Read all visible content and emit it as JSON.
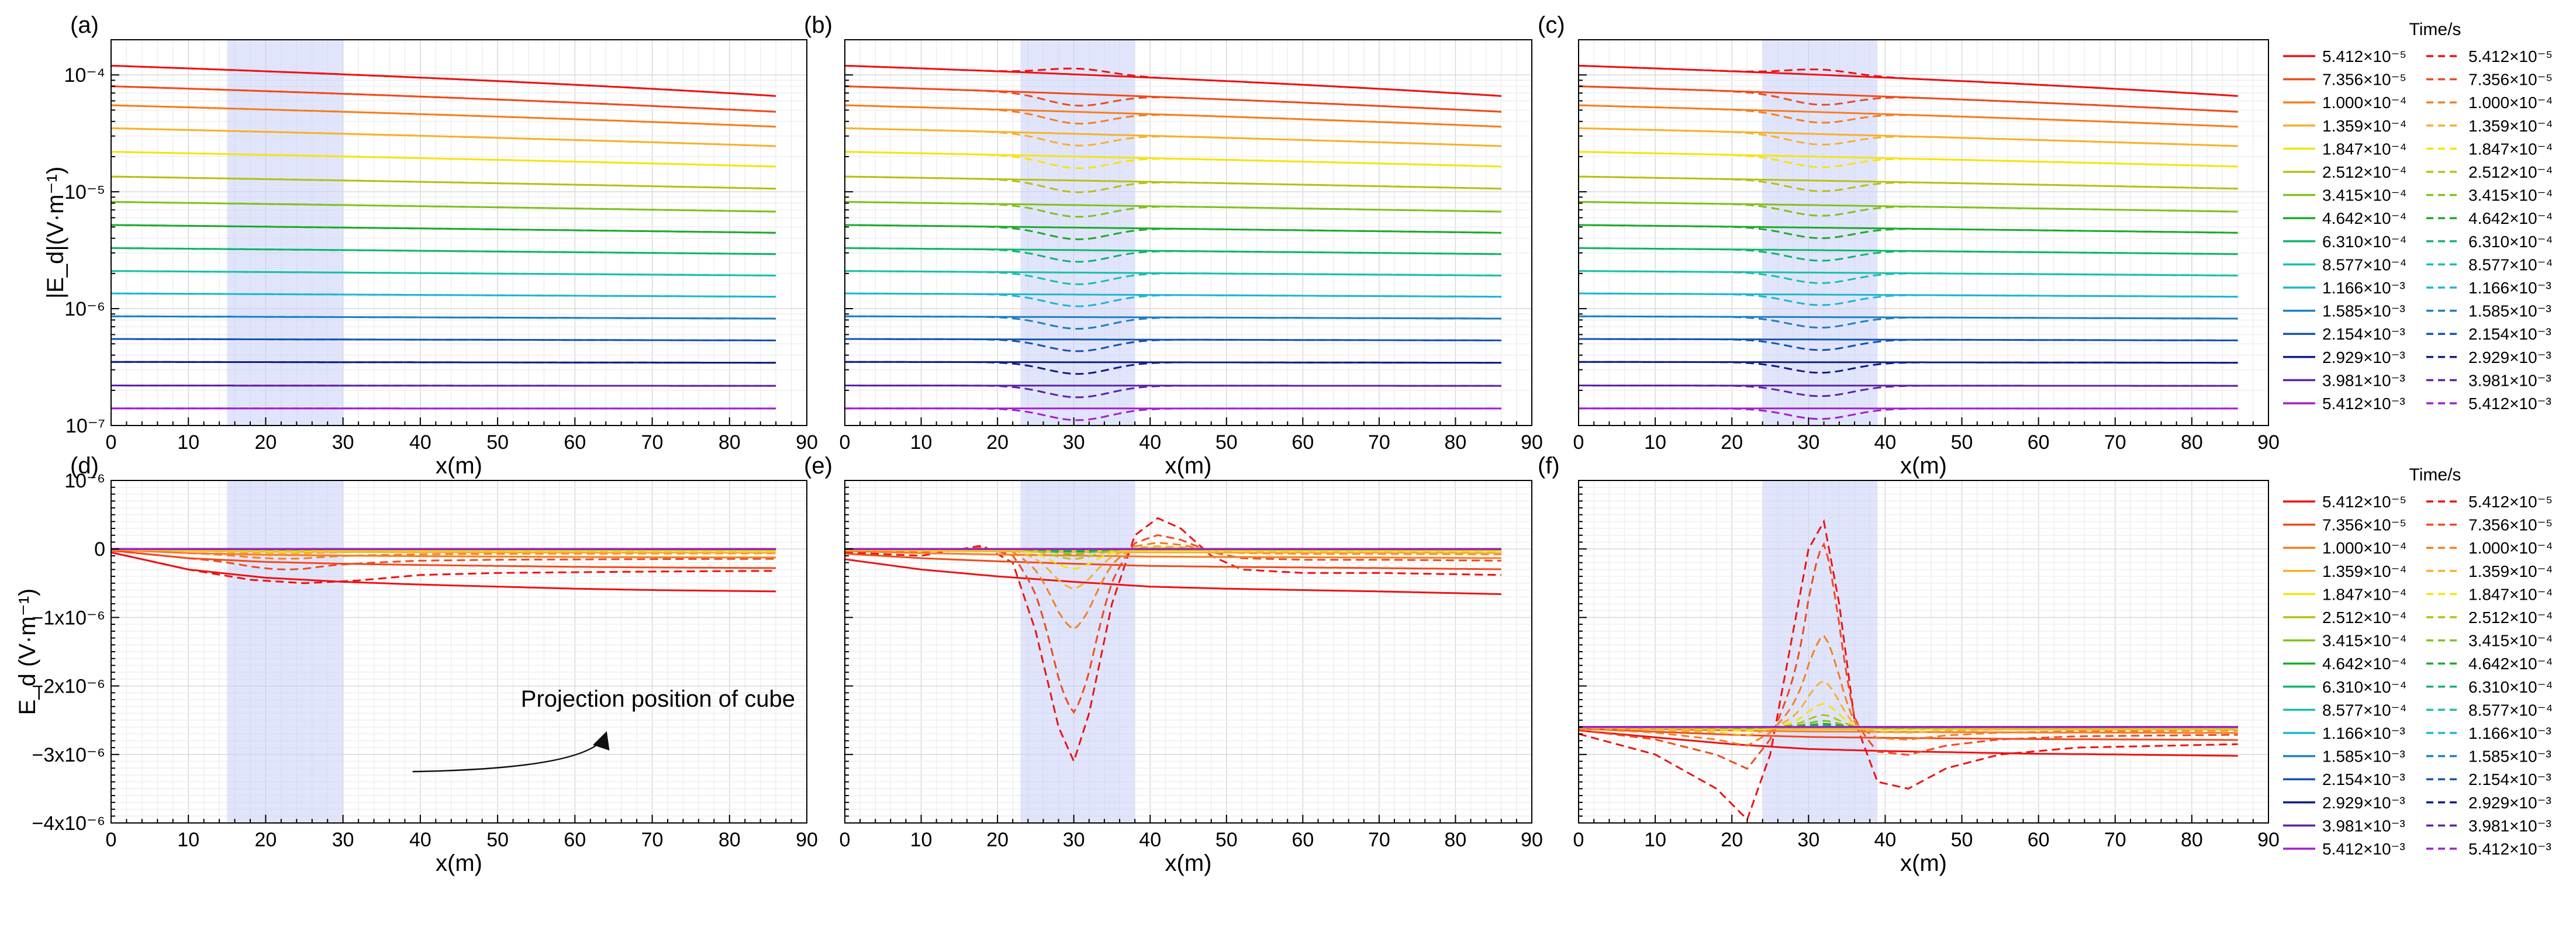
{
  "figure": {
    "x_label": "x(m)",
    "top_y_label": "|E_d|(V·m⁻¹)",
    "bottom_y_label": "E_d (V·m⁻¹)",
    "annotation": "Projection position of cube",
    "legend_title": "Time/s"
  },
  "chart_data": [
    {
      "panel": "(a)",
      "type": "line",
      "yscale": "log",
      "xlim": [
        0,
        90
      ],
      "ylim": [
        1e-07,
        0.0002
      ],
      "x_ticks": [
        "0",
        "10",
        "20",
        "30",
        "40",
        "50",
        "60",
        "70",
        "80",
        "90"
      ],
      "y_ticks": [
        "10⁻⁷",
        "10⁻⁶",
        "10⁻⁵",
        "10⁻⁴"
      ],
      "shaded_x_range": [
        15,
        30
      ],
      "dashed_anomaly": 0.0,
      "grid": true
    },
    {
      "panel": "(b)",
      "type": "line",
      "yscale": "log",
      "xlim": [
        0,
        90
      ],
      "ylim": [
        1e-07,
        0.0002
      ],
      "x_ticks": [
        "0",
        "10",
        "20",
        "30",
        "40",
        "50",
        "60",
        "70",
        "80",
        "90"
      ],
      "y_ticks": [],
      "shaded_x_range": [
        23,
        38
      ],
      "dashed_anomaly": 0.1,
      "grid": true
    },
    {
      "panel": "(c)",
      "type": "line",
      "yscale": "log",
      "xlim": [
        0,
        90
      ],
      "ylim": [
        1e-07,
        0.0002
      ],
      "x_ticks": [
        "0",
        "10",
        "20",
        "30",
        "40",
        "50",
        "60",
        "70",
        "80",
        "90"
      ],
      "y_ticks": [],
      "shaded_x_range": [
        24,
        39
      ],
      "dashed_anomaly": 0.09,
      "grid": true
    },
    {
      "panel": "(d)",
      "type": "line",
      "yscale": "linear",
      "xlim": [
        0,
        90
      ],
      "ylim": [
        -4e-06,
        1e-06
      ],
      "x_ticks": [
        "0",
        "10",
        "20",
        "30",
        "40",
        "50",
        "60",
        "70",
        "80",
        "90"
      ],
      "y_ticks": [
        "10⁻⁶",
        "0",
        "−1x10⁻⁶",
        "−2x10⁻⁶",
        "−3x10⁻⁶",
        "−4x10⁻⁶"
      ],
      "y_tick_values": [
        1e-06,
        0,
        -1e-06,
        -2e-06,
        -3e-06,
        -4e-06
      ],
      "shaded_x_range": [
        15,
        30
      ],
      "earliest_solid": [
        [
          0,
          -0.05
        ],
        [
          10,
          -0.3
        ],
        [
          20,
          -0.42
        ],
        [
          30,
          -0.48
        ],
        [
          40,
          -0.52
        ],
        [
          50,
          -0.55
        ],
        [
          60,
          -0.58
        ],
        [
          70,
          -0.6
        ],
        [
          86,
          -0.62
        ]
      ],
      "earliest_dashed": [
        [
          0,
          -0.05
        ],
        [
          10,
          -0.3
        ],
        [
          18,
          -0.45
        ],
        [
          25,
          -0.5
        ],
        [
          32,
          -0.46
        ],
        [
          40,
          -0.38
        ],
        [
          50,
          -0.35
        ],
        [
          60,
          -0.34
        ],
        [
          70,
          -0.33
        ],
        [
          86,
          -0.32
        ]
      ],
      "bump": {
        "center": 22,
        "width": 6,
        "amplitude": -0.15
      },
      "baseline": 0.0,
      "annotation_arrow": true
    },
    {
      "panel": "(e)",
      "type": "line",
      "yscale": "linear",
      "xlim": [
        0,
        90
      ],
      "ylim": [
        -4e-06,
        1e-06
      ],
      "x_ticks": [
        "0",
        "10",
        "20",
        "30",
        "40",
        "50",
        "60",
        "70",
        "80",
        "90"
      ],
      "y_ticks": [],
      "shaded_x_range": [
        23,
        38
      ],
      "earliest_solid": [
        [
          0,
          -0.15
        ],
        [
          10,
          -0.3
        ],
        [
          20,
          -0.4
        ],
        [
          30,
          -0.48
        ],
        [
          40,
          -0.55
        ],
        [
          50,
          -0.58
        ],
        [
          60,
          -0.6
        ],
        [
          70,
          -0.62
        ],
        [
          86,
          -0.66
        ]
      ],
      "earliest_dashed": [
        [
          0,
          -0.05
        ],
        [
          10,
          -0.1
        ],
        [
          18,
          0.05
        ],
        [
          22,
          -0.2
        ],
        [
          25,
          -1.2
        ],
        [
          28,
          -2.6
        ],
        [
          30,
          -3.1
        ],
        [
          32,
          -2.4
        ],
        [
          35,
          -0.8
        ],
        [
          38,
          0.2
        ],
        [
          41,
          0.45
        ],
        [
          44,
          0.3
        ],
        [
          48,
          -0.1
        ],
        [
          52,
          -0.3
        ],
        [
          60,
          -0.35
        ],
        [
          70,
          -0.35
        ],
        [
          86,
          -0.38
        ]
      ],
      "bump": {
        "center": 30,
        "width": 3.5,
        "amplitude": -1.8
      },
      "baseline": 0.0
    },
    {
      "panel": "(f)",
      "type": "line",
      "yscale": "linear",
      "xlim": [
        0,
        90
      ],
      "ylim": [
        -4e-06,
        1e-06
      ],
      "x_ticks": [
        "0",
        "10",
        "20",
        "30",
        "40",
        "50",
        "60",
        "70",
        "80",
        "90"
      ],
      "y_ticks": [],
      "shaded_x_range": [
        24,
        39
      ],
      "earliest_solid": [
        [
          0,
          -2.65
        ],
        [
          10,
          -2.75
        ],
        [
          20,
          -2.85
        ],
        [
          30,
          -2.92
        ],
        [
          40,
          -2.95
        ],
        [
          50,
          -2.97
        ],
        [
          60,
          -2.99
        ],
        [
          70,
          -3.0
        ],
        [
          86,
          -3.02
        ]
      ],
      "earliest_dashed": [
        [
          0,
          -2.7
        ],
        [
          10,
          -3.0
        ],
        [
          18,
          -3.5
        ],
        [
          22,
          -3.95
        ],
        [
          25,
          -3.0
        ],
        [
          28,
          -1.2
        ],
        [
          30,
          0.0
        ],
        [
          32,
          0.4
        ],
        [
          34,
          -0.8
        ],
        [
          36,
          -2.5
        ],
        [
          39,
          -3.4
        ],
        [
          43,
          -3.5
        ],
        [
          48,
          -3.2
        ],
        [
          55,
          -3.0
        ],
        [
          65,
          -2.9
        ],
        [
          86,
          -2.85
        ]
      ],
      "bump": {
        "center": 32,
        "width": 2.5,
        "amplitude": 2.4
      },
      "baseline": -2.6
    }
  ],
  "legend": {
    "title": "Time/s",
    "entries": [
      {
        "label": "5.412×10⁻⁵",
        "color": "#ee1111",
        "level": 0.00012
      },
      {
        "label": "7.356×10⁻⁵",
        "color": "#f04a1c",
        "level": 8e-05
      },
      {
        "label": "1.000×10⁻⁴",
        "color": "#f57e1f",
        "level": 5.5e-05
      },
      {
        "label": "1.359×10⁻⁴",
        "color": "#f8b02a",
        "level": 3.5e-05
      },
      {
        "label": "1.847×10⁻⁴",
        "color": "#f5e40e",
        "level": 2.2e-05
      },
      {
        "label": "2.512×10⁻⁴",
        "color": "#b8bf15",
        "level": 1.35e-05
      },
      {
        "label": "3.415×10⁻⁴",
        "color": "#7fc21c",
        "level": 8.2e-06
      },
      {
        "label": "4.642×10⁻⁴",
        "color": "#1eaa2b",
        "level": 5.2e-06
      },
      {
        "label": "6.310×10⁻⁴",
        "color": "#0fb56c",
        "level": 3.3e-06
      },
      {
        "label": "8.577×10⁻⁴",
        "color": "#16c0ac",
        "level": 2.1e-06
      },
      {
        "label": "1.166×10⁻³",
        "color": "#1cb6d2",
        "level": 1.35e-06
      },
      {
        "label": "1.585×10⁻³",
        "color": "#1b7fc1",
        "level": 8.6e-07
      },
      {
        "label": "2.154×10⁻³",
        "color": "#1453b1",
        "level": 5.5e-07
      },
      {
        "label": "2.929×10⁻³",
        "color": "#101d86",
        "level": 3.5e-07
      },
      {
        "label": "3.981×10⁻³",
        "color": "#5c21a8",
        "level": 2.2e-07
      },
      {
        "label": "5.412×10⁻³",
        "color": "#a21fcf",
        "level": 1.4e-07
      }
    ]
  }
}
